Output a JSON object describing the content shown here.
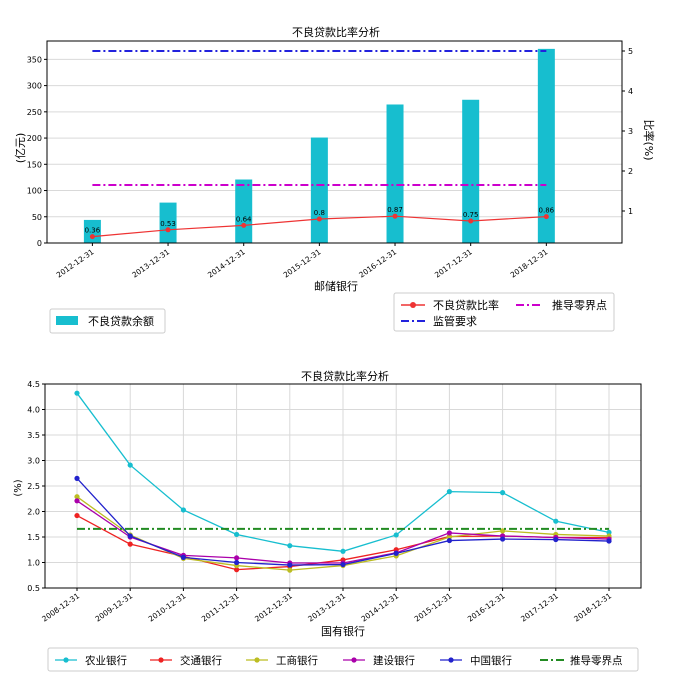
{
  "chart_data": [
    {
      "type": "bar",
      "title": "不良贷款比率分析",
      "xlabel": "邮储银行",
      "ylabel": "(亿元)",
      "y2label": "比率(%)",
      "categories": [
        "2012-12-31",
        "2013-12-31",
        "2014-12-31",
        "2015-12-31",
        "2016-12-31",
        "2017-12-31",
        "2018-12-31"
      ],
      "ylim": [
        0,
        385
      ],
      "yticks": [
        0,
        50,
        100,
        150,
        200,
        250,
        300,
        350
      ],
      "y2lim": [
        0.2,
        5.25
      ],
      "y2ticks": [
        1,
        2,
        3,
        4,
        5
      ],
      "grid": true,
      "series": [
        {
          "name": "不良贷款余额",
          "kind": "bar",
          "axis": "left",
          "color": "#17becf",
          "values": [
            44,
            77,
            121,
            201,
            264,
            273,
            370
          ]
        },
        {
          "name": "不良贷款比率",
          "kind": "line",
          "axis": "right",
          "color": "#ee3333",
          "values": [
            0.36,
            0.53,
            0.64,
            0.8,
            0.87,
            0.75,
            0.86
          ],
          "labels": [
            "0.36",
            "0.53",
            "0.64",
            "0.8",
            "0.87",
            "0.75",
            "0.86"
          ]
        },
        {
          "name": "监管要求",
          "kind": "hline",
          "axis": "right",
          "color": "#2222dd",
          "value": 5
        },
        {
          "name": "推导零界点",
          "kind": "hline",
          "axis": "right",
          "color": "#cc00cc",
          "value": 1.65
        }
      ],
      "legend_left": [
        "不良贷款余额"
      ],
      "legend_right": [
        "不良贷款比率",
        "推导零界点",
        "监管要求"
      ]
    },
    {
      "type": "line",
      "title": "不良贷款比率分析",
      "xlabel": "国有银行",
      "ylabel": "(%)",
      "categories": [
        "2008-12-31",
        "2009-12-31",
        "2010-12-31",
        "2011-12-31",
        "2012-12-31",
        "2013-12-31",
        "2014-12-31",
        "2015-12-31",
        "2016-12-31",
        "2017-12-31",
        "2018-12-31"
      ],
      "ylim": [
        0.5,
        4.5
      ],
      "yticks": [
        0.5,
        1.0,
        1.5,
        2.0,
        2.5,
        3.0,
        3.5,
        4.0,
        4.5
      ],
      "ytick_labels": [
        "0.5",
        "1.0",
        "1.5",
        "2.0",
        "2.5",
        "3.0",
        "3.5",
        "4.0",
        "4.5"
      ],
      "grid": true,
      "series": [
        {
          "name": "农业银行",
          "color": "#17becf",
          "values": [
            4.32,
            2.91,
            2.03,
            1.55,
            1.33,
            1.22,
            1.54,
            2.39,
            2.37,
            1.81,
            1.59
          ]
        },
        {
          "name": "交通银行",
          "color": "#ee2222",
          "values": [
            1.92,
            1.36,
            1.12,
            0.86,
            0.92,
            1.05,
            1.25,
            1.51,
            1.52,
            1.49,
            1.49
          ]
        },
        {
          "name": "工商银行",
          "color": "#bcbd22",
          "values": [
            2.29,
            1.54,
            1.08,
            0.94,
            0.85,
            0.94,
            1.13,
            1.5,
            1.62,
            1.55,
            1.52
          ]
        },
        {
          "name": "建设银行",
          "color": "#aa00aa",
          "values": [
            2.21,
            1.5,
            1.14,
            1.09,
            0.99,
            0.99,
            1.19,
            1.58,
            1.52,
            1.49,
            1.46
          ]
        },
        {
          "name": "中国银行",
          "color": "#2222cc",
          "values": [
            2.65,
            1.52,
            1.1,
            1.0,
            0.95,
            0.96,
            1.18,
            1.43,
            1.46,
            1.45,
            1.42
          ]
        },
        {
          "name": "推导零界点",
          "color": "#228B22",
          "kind": "hline",
          "value": 1.66
        }
      ]
    }
  ]
}
